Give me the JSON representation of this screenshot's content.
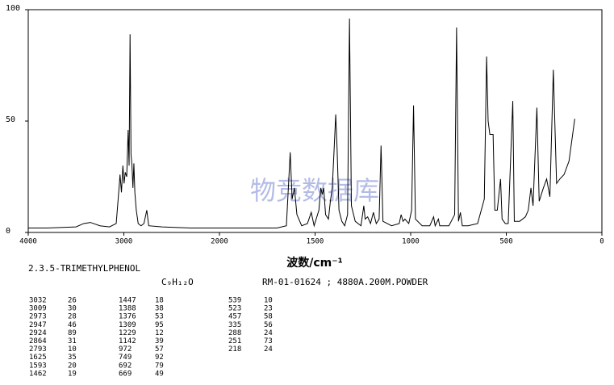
{
  "chart_data": {
    "type": "line",
    "x_label": "波数/cm⁻¹",
    "watermark": "物竞数据库",
    "xlim": [
      4000,
      0
    ],
    "ylim": [
      0,
      100
    ],
    "xticks": [
      4000,
      3000,
      2000,
      1500,
      1000,
      500,
      0
    ],
    "yticks": [
      0,
      50,
      100
    ],
    "color": "#000000",
    "x": [
      4000,
      3800,
      3500,
      3420,
      3350,
      3250,
      3150,
      3080,
      3050,
      3040,
      3025,
      3010,
      2998,
      2985,
      2970,
      2955,
      2945,
      2935,
      2925,
      2915,
      2905,
      2895,
      2885,
      2870,
      2850,
      2820,
      2790,
      2760,
      2740,
      2600,
      2300,
      2000,
      1800,
      1700,
      1650,
      1630,
      1620,
      1608,
      1595,
      1570,
      1540,
      1520,
      1505,
      1480,
      1470,
      1462,
      1455,
      1445,
      1430,
      1420,
      1410,
      1400,
      1392,
      1385,
      1375,
      1360,
      1345,
      1330,
      1320,
      1310,
      1290,
      1260,
      1245,
      1238,
      1225,
      1210,
      1195,
      1180,
      1165,
      1155,
      1145,
      1100,
      1060,
      1050,
      1040,
      1030,
      1010,
      995,
      985,
      975,
      940,
      900,
      880,
      872,
      855,
      848,
      800,
      770,
      760,
      750,
      740,
      730,
      700,
      650,
      615,
      603,
      595,
      586,
      569,
      560,
      547,
      530,
      522,
      505,
      490,
      466,
      458,
      430,
      400,
      385,
      371,
      360,
      340,
      328,
      306,
      289,
      272,
      254,
      237,
      220,
      198,
      172,
      142
    ],
    "values": [
      2,
      2,
      2.5,
      4,
      4.5,
      3,
      2.5,
      4,
      20,
      26,
      18,
      30,
      22,
      27,
      25,
      46,
      30,
      89,
      35,
      30,
      20,
      31,
      18,
      10,
      4,
      3,
      4,
      10,
      3,
      2.5,
      2,
      2,
      2,
      2,
      3,
      36,
      15,
      20,
      8,
      3,
      4,
      9,
      3,
      10,
      20,
      17,
      20,
      8,
      6,
      14,
      20,
      38,
      53,
      38,
      10,
      5,
      3,
      8,
      96,
      12,
      5,
      3,
      12,
      6,
      7,
      4,
      9,
      4,
      6,
      39,
      5,
      3,
      4,
      8,
      5,
      6,
      4,
      10,
      57,
      6,
      3,
      3,
      7,
      3,
      6,
      3,
      3,
      8,
      92,
      5,
      9,
      3,
      3,
      4,
      15,
      79,
      50,
      44,
      44,
      10,
      10,
      24,
      6,
      4,
      4,
      59,
      5,
      5,
      7,
      10,
      20,
      12,
      56,
      14,
      20,
      24,
      16,
      73,
      22,
      24,
      26,
      32,
      51
    ]
  },
  "info": {
    "name": "2.3.5-TRIMETHYLPHENOL",
    "formula": "C₉H₁₂O",
    "reference": "RM-01-01624 ; 4880A.200M.POWDER"
  },
  "table": {
    "columns": [
      [
        [
          "3032",
          "26"
        ],
        [
          "3009",
          "30"
        ],
        [
          "2973",
          "28"
        ],
        [
          "2947",
          "46"
        ],
        [
          "2924",
          "89"
        ],
        [
          "2864",
          "31"
        ],
        [
          "2793",
          "10"
        ],
        [
          "1625",
          "35"
        ],
        [
          "1593",
          "20"
        ],
        [
          "1462",
          "19"
        ]
      ],
      [
        [
          "1447",
          "18"
        ],
        [
          "1388",
          "38"
        ],
        [
          "1376",
          "53"
        ],
        [
          "1309",
          "95"
        ],
        [
          "1229",
          "12"
        ],
        [
          "1142",
          "39"
        ],
        [
          "972",
          "57"
        ],
        [
          "749",
          "92"
        ],
        [
          "692",
          "79"
        ],
        [
          "669",
          "49"
        ]
      ],
      [
        [
          "539",
          "10"
        ],
        [
          "523",
          "23"
        ],
        [
          "457",
          "58"
        ],
        [
          "335",
          "56"
        ],
        [
          "288",
          "24"
        ],
        [
          "251",
          "73"
        ],
        [
          "218",
          "24"
        ]
      ]
    ]
  }
}
